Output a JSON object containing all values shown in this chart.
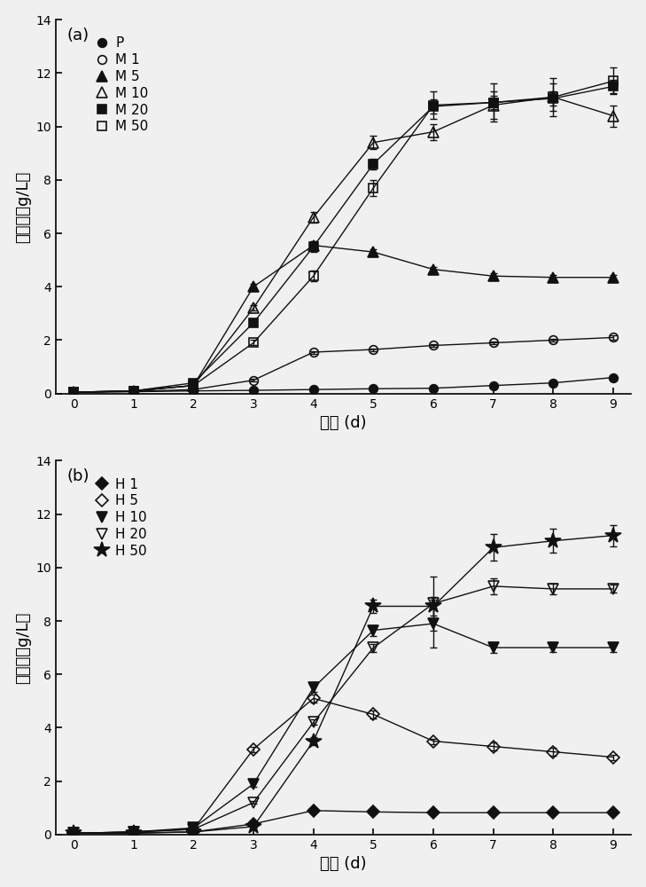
{
  "x": [
    0,
    1,
    2,
    3,
    4,
    5,
    6,
    7,
    8,
    9
  ],
  "panel_a": {
    "label": "(a)",
    "series": [
      {
        "name": "P",
        "y": [
          0.05,
          0.07,
          0.1,
          0.12,
          0.15,
          0.18,
          0.2,
          0.3,
          0.4,
          0.6
        ],
        "yerr": [
          0.01,
          0.01,
          0.01,
          0.01,
          0.01,
          0.01,
          0.01,
          0.01,
          0.02,
          0.03
        ],
        "marker": "o",
        "filled": true
      },
      {
        "name": "M 1",
        "y": [
          0.05,
          0.08,
          0.15,
          0.5,
          1.55,
          1.65,
          1.8,
          1.9,
          2.0,
          2.1
        ],
        "yerr": [
          0.01,
          0.01,
          0.02,
          0.05,
          0.05,
          0.05,
          0.05,
          0.05,
          0.06,
          0.07
        ],
        "marker": "o",
        "filled": false
      },
      {
        "name": "M 5",
        "y": [
          0.05,
          0.1,
          0.3,
          4.0,
          5.55,
          5.3,
          4.65,
          4.4,
          4.35,
          4.35
        ],
        "yerr": [
          0.01,
          0.01,
          0.05,
          0.1,
          0.15,
          0.1,
          0.1,
          0.1,
          0.1,
          0.1
        ],
        "marker": "^",
        "filled": true
      },
      {
        "name": "M 10",
        "y": [
          0.05,
          0.1,
          0.3,
          3.2,
          6.6,
          9.4,
          9.8,
          10.8,
          11.1,
          10.4
        ],
        "yerr": [
          0.01,
          0.01,
          0.05,
          0.1,
          0.2,
          0.25,
          0.3,
          0.5,
          0.5,
          0.4
        ],
        "marker": "^",
        "filled": false
      },
      {
        "name": "M 20",
        "y": [
          0.05,
          0.1,
          0.4,
          2.65,
          5.5,
          8.6,
          10.75,
          10.9,
          11.05,
          11.5
        ],
        "yerr": [
          0.01,
          0.01,
          0.05,
          0.1,
          0.2,
          0.2,
          0.25,
          0.25,
          0.25,
          0.25
        ],
        "marker": "s",
        "filled": true
      },
      {
        "name": "M 50",
        "y": [
          0.05,
          0.1,
          0.3,
          1.9,
          4.4,
          7.7,
          10.8,
          10.9,
          11.1,
          11.7
        ],
        "yerr": [
          0.01,
          0.01,
          0.05,
          0.1,
          0.2,
          0.3,
          0.5,
          0.7,
          0.7,
          0.5
        ],
        "marker": "s",
        "filled": false
      }
    ]
  },
  "panel_b": {
    "label": "(b)",
    "series": [
      {
        "name": "H 1",
        "y": [
          0.05,
          0.07,
          0.1,
          0.4,
          0.9,
          0.85,
          0.82,
          0.82,
          0.82,
          0.82
        ],
        "yerr": [
          0.01,
          0.01,
          0.01,
          0.03,
          0.05,
          0.05,
          0.03,
          0.03,
          0.03,
          0.03
        ],
        "marker": "D",
        "filled": true
      },
      {
        "name": "H 5",
        "y": [
          0.05,
          0.1,
          0.2,
          3.2,
          5.1,
          4.5,
          3.5,
          3.3,
          3.1,
          2.9
        ],
        "yerr": [
          0.01,
          0.01,
          0.05,
          0.1,
          0.15,
          0.15,
          0.1,
          0.15,
          0.15,
          0.1
        ],
        "marker": "D",
        "filled": false
      },
      {
        "name": "H 10",
        "y": [
          0.05,
          0.1,
          0.25,
          1.9,
          5.5,
          7.65,
          7.9,
          7.0,
          7.0,
          7.0
        ],
        "yerr": [
          0.01,
          0.01,
          0.05,
          0.1,
          0.15,
          0.2,
          0.9,
          0.2,
          0.15,
          0.15
        ],
        "marker": "v",
        "filled": true
      },
      {
        "name": "H 20",
        "y": [
          0.05,
          0.1,
          0.2,
          1.2,
          4.2,
          7.0,
          8.65,
          9.3,
          9.2,
          9.2
        ],
        "yerr": [
          0.01,
          0.01,
          0.05,
          0.05,
          0.1,
          0.15,
          1.0,
          0.3,
          0.2,
          0.15
        ],
        "marker": "v",
        "filled": false
      },
      {
        "name": "H 50",
        "y": [
          0.05,
          0.05,
          0.1,
          0.3,
          3.5,
          8.55,
          8.55,
          10.75,
          11.0,
          11.2
        ],
        "yerr": [
          0.01,
          0.01,
          0.01,
          0.05,
          0.15,
          0.25,
          0.35,
          0.5,
          0.45,
          0.4
        ],
        "marker": "*",
        "filled": true
      }
    ]
  },
  "ylim": [
    0,
    14
  ],
  "yticks": [
    0,
    2,
    4,
    6,
    8,
    10,
    12,
    14
  ],
  "xlabel": "时间 (d)",
  "ylabel": "生物量（g/L）",
  "background_color": "#f0f0f0",
  "color": "#111111",
  "marker_size_map": {
    "o": 7,
    "^": 9,
    "s": 7,
    "D": 7,
    "v": 9,
    "*": 13
  }
}
